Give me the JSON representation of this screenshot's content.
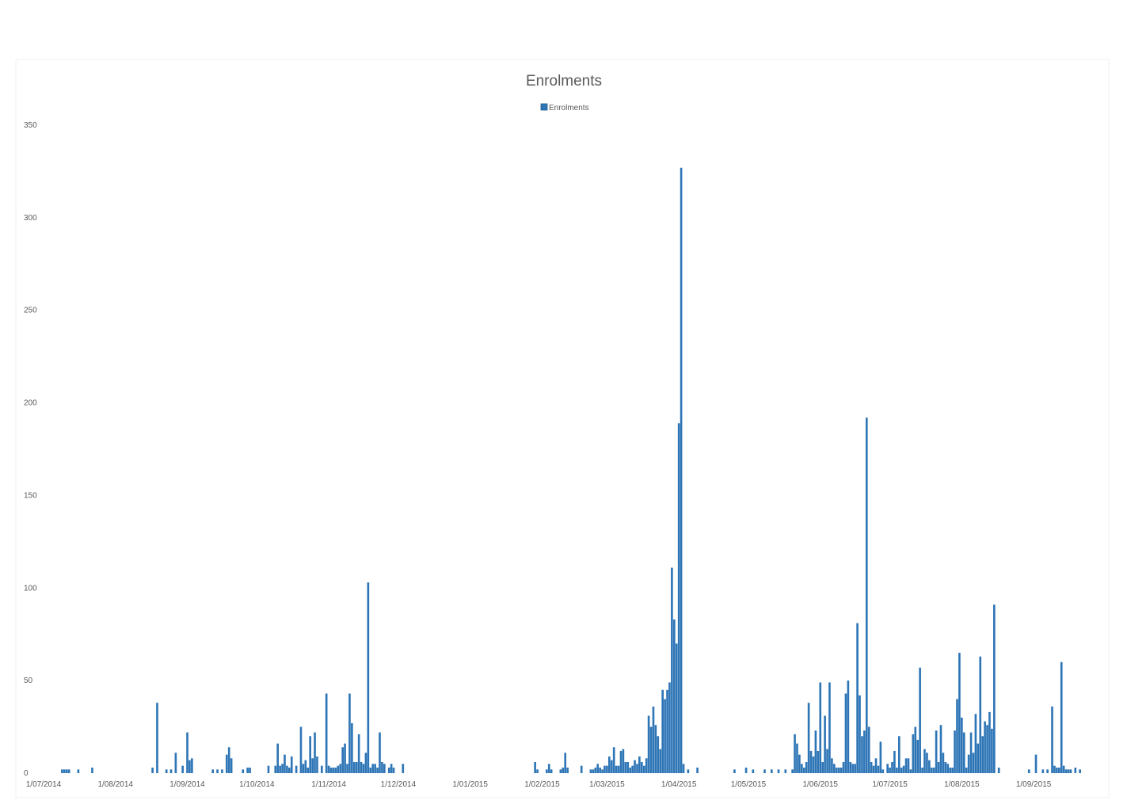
{
  "chart_data": {
    "type": "bar",
    "title": "Enrolments",
    "legend": {
      "position": "top",
      "entries": [
        "Enrolments"
      ]
    },
    "xlabel": "",
    "ylabel": "",
    "ylim": [
      0,
      350
    ],
    "yticks": [
      0,
      50,
      100,
      150,
      200,
      250,
      300,
      350
    ],
    "grid": false,
    "color": "#2e75b6",
    "xlim": [
      "2014-07-01",
      "2015-09-30"
    ],
    "xtick_labels": [
      {
        "date": "2014-07-01",
        "label": "1/07/2014"
      },
      {
        "date": "2014-08-01",
        "label": "1/08/2014"
      },
      {
        "date": "2014-09-01",
        "label": "1/09/2014"
      },
      {
        "date": "2014-10-01",
        "label": "1/10/2014"
      },
      {
        "date": "2014-11-01",
        "label": "1/11/2014"
      },
      {
        "date": "2014-12-01",
        "label": "1/12/2014"
      },
      {
        "date": "2015-01-01",
        "label": "1/01/2015"
      },
      {
        "date": "2015-02-01",
        "label": "1/02/2015"
      },
      {
        "date": "2015-03-01",
        "label": "1/03/2015"
      },
      {
        "date": "2015-04-01",
        "label": "1/04/2015"
      },
      {
        "date": "2015-05-01",
        "label": "1/05/2015"
      },
      {
        "date": "2015-06-01",
        "label": "1/06/2015"
      },
      {
        "date": "2015-07-01",
        "label": "1/07/2015"
      },
      {
        "date": "2015-08-01",
        "label": "1/08/2015"
      },
      {
        "date": "2015-09-01",
        "label": "1/09/2015"
      }
    ],
    "series": [
      {
        "name": "Enrolments",
        "points": [
          [
            "2014-07-09",
            2
          ],
          [
            "2014-07-10",
            2
          ],
          [
            "2014-07-11",
            2
          ],
          [
            "2014-07-12",
            2
          ],
          [
            "2014-07-16",
            2
          ],
          [
            "2014-07-22",
            3
          ],
          [
            "2014-08-17",
            3
          ],
          [
            "2014-08-19",
            38
          ],
          [
            "2014-08-23",
            2
          ],
          [
            "2014-08-25",
            2
          ],
          [
            "2014-08-27",
            11
          ],
          [
            "2014-08-30",
            4
          ],
          [
            "2014-09-01",
            22
          ],
          [
            "2014-09-02",
            7
          ],
          [
            "2014-09-03",
            8
          ],
          [
            "2014-09-12",
            2
          ],
          [
            "2014-09-14",
            2
          ],
          [
            "2014-09-16",
            2
          ],
          [
            "2014-09-18",
            10
          ],
          [
            "2014-09-19",
            14
          ],
          [
            "2014-09-20",
            8
          ],
          [
            "2014-09-25",
            2
          ],
          [
            "2014-09-27",
            3
          ],
          [
            "2014-09-28",
            3
          ],
          [
            "2014-10-06",
            4
          ],
          [
            "2014-10-09",
            4
          ],
          [
            "2014-10-10",
            16
          ],
          [
            "2014-10-11",
            4
          ],
          [
            "2014-10-12",
            5
          ],
          [
            "2014-10-13",
            10
          ],
          [
            "2014-10-14",
            4
          ],
          [
            "2014-10-15",
            3
          ],
          [
            "2014-10-16",
            9
          ],
          [
            "2014-10-18",
            4
          ],
          [
            "2014-10-20",
            25
          ],
          [
            "2014-10-21",
            5
          ],
          [
            "2014-10-22",
            7
          ],
          [
            "2014-10-23",
            3
          ],
          [
            "2014-10-24",
            20
          ],
          [
            "2014-10-25",
            8
          ],
          [
            "2014-10-26",
            22
          ],
          [
            "2014-10-27",
            9
          ],
          [
            "2014-10-29",
            4
          ],
          [
            "2014-10-31",
            43
          ],
          [
            "2014-11-01",
            4
          ],
          [
            "2014-11-02",
            3
          ],
          [
            "2014-11-03",
            3
          ],
          [
            "2014-11-04",
            3
          ],
          [
            "2014-11-05",
            4
          ],
          [
            "2014-11-06",
            5
          ],
          [
            "2014-11-07",
            14
          ],
          [
            "2014-11-08",
            16
          ],
          [
            "2014-11-09",
            5
          ],
          [
            "2014-11-10",
            43
          ],
          [
            "2014-11-11",
            27
          ],
          [
            "2014-11-12",
            6
          ],
          [
            "2014-11-13",
            6
          ],
          [
            "2014-11-14",
            21
          ],
          [
            "2014-11-15",
            6
          ],
          [
            "2014-11-16",
            5
          ],
          [
            "2014-11-17",
            11
          ],
          [
            "2014-11-18",
            103
          ],
          [
            "2014-11-19",
            3
          ],
          [
            "2014-11-20",
            5
          ],
          [
            "2014-11-21",
            5
          ],
          [
            "2014-11-22",
            3
          ],
          [
            "2014-11-23",
            22
          ],
          [
            "2014-11-24",
            6
          ],
          [
            "2014-11-25",
            5
          ],
          [
            "2014-11-27",
            3
          ],
          [
            "2014-11-28",
            5
          ],
          [
            "2014-11-29",
            3
          ],
          [
            "2014-12-03",
            5
          ],
          [
            "2015-01-29",
            6
          ],
          [
            "2015-01-30",
            2
          ],
          [
            "2015-02-03",
            2
          ],
          [
            "2015-02-04",
            5
          ],
          [
            "2015-02-05",
            2
          ],
          [
            "2015-02-09",
            2
          ],
          [
            "2015-02-10",
            3
          ],
          [
            "2015-02-11",
            11
          ],
          [
            "2015-02-12",
            3
          ],
          [
            "2015-02-18",
            4
          ],
          [
            "2015-02-22",
            2
          ],
          [
            "2015-02-23",
            2
          ],
          [
            "2015-02-24",
            3
          ],
          [
            "2015-02-25",
            5
          ],
          [
            "2015-02-26",
            3
          ],
          [
            "2015-02-27",
            2
          ],
          [
            "2015-02-28",
            4
          ],
          [
            "2015-03-01",
            4
          ],
          [
            "2015-03-02",
            9
          ],
          [
            "2015-03-03",
            7
          ],
          [
            "2015-03-04",
            14
          ],
          [
            "2015-03-05",
            4
          ],
          [
            "2015-03-06",
            4
          ],
          [
            "2015-03-07",
            12
          ],
          [
            "2015-03-08",
            13
          ],
          [
            "2015-03-09",
            6
          ],
          [
            "2015-03-10",
            6
          ],
          [
            "2015-03-11",
            3
          ],
          [
            "2015-03-12",
            4
          ],
          [
            "2015-03-13",
            7
          ],
          [
            "2015-03-14",
            5
          ],
          [
            "2015-03-15",
            9
          ],
          [
            "2015-03-16",
            6
          ],
          [
            "2015-03-17",
            4
          ],
          [
            "2015-03-18",
            8
          ],
          [
            "2015-03-19",
            31
          ],
          [
            "2015-03-20",
            25
          ],
          [
            "2015-03-21",
            36
          ],
          [
            "2015-03-22",
            26
          ],
          [
            "2015-03-23",
            20
          ],
          [
            "2015-03-24",
            13
          ],
          [
            "2015-03-25",
            45
          ],
          [
            "2015-03-26",
            40
          ],
          [
            "2015-03-27",
            45
          ],
          [
            "2015-03-28",
            49
          ],
          [
            "2015-03-29",
            111
          ],
          [
            "2015-03-30",
            83
          ],
          [
            "2015-03-31",
            70
          ],
          [
            "2015-04-01",
            189
          ],
          [
            "2015-04-02",
            327
          ],
          [
            "2015-04-03",
            5
          ],
          [
            "2015-04-05",
            2
          ],
          [
            "2015-04-09",
            3
          ],
          [
            "2015-04-25",
            2
          ],
          [
            "2015-04-30",
            3
          ],
          [
            "2015-05-03",
            2
          ],
          [
            "2015-05-08",
            2
          ],
          [
            "2015-05-11",
            2
          ],
          [
            "2015-05-14",
            2
          ],
          [
            "2015-05-17",
            2
          ],
          [
            "2015-05-20",
            2
          ],
          [
            "2015-05-21",
            21
          ],
          [
            "2015-05-22",
            16
          ],
          [
            "2015-05-23",
            10
          ],
          [
            "2015-05-24",
            5
          ],
          [
            "2015-05-25",
            3
          ],
          [
            "2015-05-26",
            6
          ],
          [
            "2015-05-27",
            38
          ],
          [
            "2015-05-28",
            12
          ],
          [
            "2015-05-29",
            9
          ],
          [
            "2015-05-30",
            23
          ],
          [
            "2015-05-31",
            12
          ],
          [
            "2015-06-01",
            49
          ],
          [
            "2015-06-02",
            6
          ],
          [
            "2015-06-03",
            31
          ],
          [
            "2015-06-04",
            13
          ],
          [
            "2015-06-05",
            49
          ],
          [
            "2015-06-06",
            8
          ],
          [
            "2015-06-07",
            5
          ],
          [
            "2015-06-08",
            3
          ],
          [
            "2015-06-09",
            3
          ],
          [
            "2015-06-10",
            3
          ],
          [
            "2015-06-11",
            6
          ],
          [
            "2015-06-12",
            43
          ],
          [
            "2015-06-13",
            50
          ],
          [
            "2015-06-14",
            6
          ],
          [
            "2015-06-15",
            5
          ],
          [
            "2015-06-16",
            5
          ],
          [
            "2015-06-17",
            81
          ],
          [
            "2015-06-18",
            42
          ],
          [
            "2015-06-19",
            20
          ],
          [
            "2015-06-20",
            23
          ],
          [
            "2015-06-21",
            192
          ],
          [
            "2015-06-22",
            25
          ],
          [
            "2015-06-23",
            6
          ],
          [
            "2015-06-24",
            4
          ],
          [
            "2015-06-25",
            8
          ],
          [
            "2015-06-26",
            4
          ],
          [
            "2015-06-27",
            17
          ],
          [
            "2015-06-28",
            2
          ],
          [
            "2015-06-30",
            5
          ],
          [
            "2015-07-01",
            3
          ],
          [
            "2015-07-02",
            6
          ],
          [
            "2015-07-03",
            12
          ],
          [
            "2015-07-04",
            3
          ],
          [
            "2015-07-05",
            20
          ],
          [
            "2015-07-06",
            3
          ],
          [
            "2015-07-07",
            4
          ],
          [
            "2015-07-08",
            8
          ],
          [
            "2015-07-09",
            8
          ],
          [
            "2015-07-10",
            2
          ],
          [
            "2015-07-11",
            21
          ],
          [
            "2015-07-12",
            25
          ],
          [
            "2015-07-13",
            18
          ],
          [
            "2015-07-14",
            57
          ],
          [
            "2015-07-15",
            3
          ],
          [
            "2015-07-16",
            13
          ],
          [
            "2015-07-17",
            11
          ],
          [
            "2015-07-18",
            7
          ],
          [
            "2015-07-19",
            3
          ],
          [
            "2015-07-20",
            3
          ],
          [
            "2015-07-21",
            23
          ],
          [
            "2015-07-22",
            6
          ],
          [
            "2015-07-23",
            26
          ],
          [
            "2015-07-24",
            11
          ],
          [
            "2015-07-25",
            6
          ],
          [
            "2015-07-26",
            5
          ],
          [
            "2015-07-27",
            3
          ],
          [
            "2015-07-28",
            3
          ],
          [
            "2015-07-29",
            23
          ],
          [
            "2015-07-30",
            40
          ],
          [
            "2015-07-31",
            65
          ],
          [
            "2015-08-01",
            30
          ],
          [
            "2015-08-02",
            22
          ],
          [
            "2015-08-03",
            3
          ],
          [
            "2015-08-04",
            10
          ],
          [
            "2015-08-05",
            22
          ],
          [
            "2015-08-06",
            11
          ],
          [
            "2015-08-07",
            32
          ],
          [
            "2015-08-08",
            16
          ],
          [
            "2015-08-09",
            63
          ],
          [
            "2015-08-10",
            20
          ],
          [
            "2015-08-11",
            28
          ],
          [
            "2015-08-12",
            26
          ],
          [
            "2015-08-13",
            33
          ],
          [
            "2015-08-14",
            24
          ],
          [
            "2015-08-15",
            91
          ],
          [
            "2015-08-17",
            3
          ],
          [
            "2015-08-30",
            2
          ],
          [
            "2015-09-02",
            10
          ],
          [
            "2015-09-05",
            2
          ],
          [
            "2015-09-07",
            2
          ],
          [
            "2015-09-09",
            36
          ],
          [
            "2015-09-10",
            4
          ],
          [
            "2015-09-11",
            3
          ],
          [
            "2015-09-12",
            3
          ],
          [
            "2015-09-13",
            60
          ],
          [
            "2015-09-14",
            4
          ],
          [
            "2015-09-15",
            2
          ],
          [
            "2015-09-16",
            2
          ],
          [
            "2015-09-17",
            2
          ],
          [
            "2015-09-19",
            3
          ],
          [
            "2015-09-21",
            2
          ]
        ]
      }
    ]
  }
}
